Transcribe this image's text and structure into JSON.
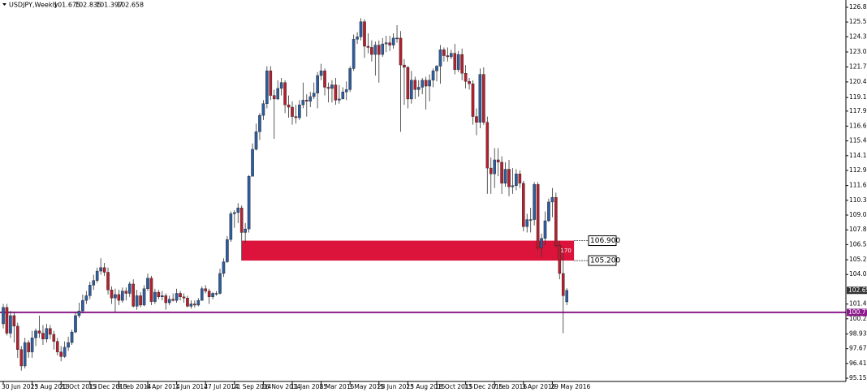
{
  "chart_data": {
    "type": "candlestick",
    "title": "USDJPY,Weekly",
    "ylim": [
      94.88,
      127.45
    ],
    "yticks": [
      {
        "value": 126.83,
        "label": "126.830"
      },
      {
        "value": 125.57,
        "label": "125.570"
      },
      {
        "value": 124.31,
        "label": "124.310"
      },
      123.015,
      121.735,
      120.455,
      119.125,
      117.965,
      {
        "value": 116.68,
        "label": "116.680"
      },
      {
        "value": 115.42,
        "label": "115.420"
      },
      {
        "value": 114.16,
        "label": "114.160"
      },
      {
        "value": 112.9,
        "label": "112.900"
      },
      111.605,
      110.345,
      109.085,
      107.825,
      106.565,
      {
        "value": 105.27,
        "label": "105.270"
      },
      {
        "value": 104.01,
        "label": "104.010"
      },
      {
        "value": 101.49,
        "label": "101.490"
      },
      {
        "value": 100.23,
        "label": "100.230"
      },
      98.935,
      97.675,
      96.415,
      95.155
    ],
    "categories": [
      "30 Jun 2013",
      null,
      null,
      null,
      null,
      null,
      null,
      null,
      "25 Aug 2013",
      null,
      null,
      null,
      null,
      null,
      null,
      null,
      "20 Oct 2013",
      null,
      null,
      null,
      null,
      null,
      null,
      null,
      "15 Dec 2013",
      null,
      null,
      null,
      null,
      null,
      null,
      null,
      "9 Feb 2014",
      null,
      null,
      null,
      null,
      null,
      null,
      null,
      "6 Apr 2014",
      null,
      null,
      null,
      null,
      null,
      null,
      null,
      "1 Jun 2014",
      null,
      null,
      null,
      null,
      null,
      null,
      null,
      "27 Jul 2014",
      null,
      null,
      null,
      null,
      null,
      null,
      null,
      "21 Sep 2014",
      null,
      null,
      null,
      null,
      null,
      null,
      null,
      "16 Nov 2014",
      null,
      null,
      null,
      null,
      null,
      null,
      null,
      "11 Jan 2015",
      null,
      null,
      null,
      null,
      null,
      null,
      null,
      "8 Mar 2015",
      null,
      null,
      null,
      null,
      null,
      null,
      null,
      "3 May 2015",
      null,
      null,
      null,
      null,
      null,
      null,
      null,
      "28 Jun 2015",
      null,
      null,
      null,
      null,
      null,
      null,
      null,
      "23 Aug 2015",
      null,
      null,
      null,
      null,
      null,
      null,
      null,
      "18 Oct 2015",
      null,
      null,
      null,
      null,
      null,
      null,
      null,
      "13 Dec 2015",
      null,
      null,
      null,
      null,
      null,
      null,
      null,
      "7 Feb 2016",
      null,
      null,
      null,
      null,
      null,
      null,
      null,
      "3 Apr 2016",
      null,
      null,
      null,
      null,
      null,
      null,
      null,
      "29 May 2016",
      null,
      null,
      null,
      null
    ],
    "open": [
      99.8,
      101.2,
      99.0,
      100.5,
      99.6,
      97.6,
      96.2,
      98.2,
      97.4,
      98.6,
      99.2,
      99.0,
      98.5,
      99.4,
      98.9,
      98.3,
      97.4,
      97.0,
      97.8,
      98.2,
      99.1,
      100.5,
      100.9,
      101.8,
      102.2,
      103.1,
      103.5,
      104.3,
      104.6,
      104.2,
      102.7,
      102.0,
      102.3,
      101.8,
      102.6,
      102.4,
      103.2,
      101.3,
      102.2,
      101.4,
      102.8,
      103.7,
      101.7,
      102.5,
      102.1,
      102.2,
      101.6,
      101.9,
      101.8,
      102.4,
      102.1,
      102.0,
      101.3,
      101.5,
      101.4,
      101.8,
      102.8,
      102.6,
      102.1,
      102.4,
      102.4,
      104.1,
      105.1,
      107.0,
      109.2,
      109.3,
      109.7,
      107.6,
      107.9,
      112.4,
      114.7,
      116.2,
      117.6,
      118.6,
      121.4,
      119.3,
      119.0,
      119.9,
      120.4,
      118.5,
      118.3,
      117.5,
      117.4,
      118.5,
      118.9,
      118.8,
      119.2,
      119.5,
      121.0,
      121.4,
      120.0,
      119.9,
      120.2,
      118.9,
      119.0,
      119.6,
      119.8,
      121.6,
      124.1,
      124.3,
      125.6,
      123.5,
      123.4,
      122.8,
      123.6,
      122.8,
      123.7,
      123.8,
      123.6,
      124.2,
      124.2,
      121.9,
      121.7,
      119.0,
      120.6,
      119.8,
      120.0,
      120.6,
      120.1,
      120.6,
      121.4,
      121.8,
      123.2,
      122.7,
      122.6,
      122.9,
      121.5,
      122.8,
      121.2,
      120.5,
      120.3,
      117.5,
      117.0,
      121.1,
      117.0,
      113.1,
      112.6,
      113.8,
      113.6,
      111.8,
      113.0,
      111.5,
      111.6,
      112.6,
      111.8,
      108.1,
      108.7,
      108.7,
      111.7,
      106.3,
      107.1,
      108.6,
      110.2,
      110.6,
      106.5,
      104.1,
      101.675
    ],
    "high": [
      101.5,
      101.5,
      100.9,
      100.8,
      99.9,
      97.9,
      98.6,
      98.4,
      99.2,
      99.4,
      100.5,
      99.7,
      99.8,
      99.7,
      99.2,
      98.6,
      97.9,
      98.3,
      98.7,
      99.3,
      100.8,
      101.6,
      102.3,
      102.6,
      103.4,
      104.0,
      104.6,
      105.4,
      105.0,
      104.6,
      103.0,
      102.8,
      102.7,
      102.9,
      102.9,
      103.4,
      103.6,
      102.7,
      102.5,
      103.1,
      104.1,
      103.9,
      102.8,
      102.7,
      102.6,
      102.4,
      102.2,
      102.4,
      102.8,
      102.6,
      102.4,
      102.2,
      101.8,
      101.8,
      102.0,
      103.0,
      103.1,
      102.8,
      102.5,
      102.6,
      104.5,
      105.4,
      107.3,
      109.4,
      109.5,
      110.1,
      109.9,
      108.4,
      112.5,
      115.2,
      116.9,
      117.8,
      118.9,
      121.8,
      121.8,
      119.8,
      120.6,
      120.8,
      120.6,
      119.3,
      118.8,
      118.5,
      118.9,
      120.4,
      119.4,
      119.6,
      120.4,
      121.3,
      122.0,
      121.6,
      120.4,
      120.6,
      120.8,
      120.2,
      120.0,
      120.5,
      121.8,
      124.5,
      124.7,
      125.9,
      125.8,
      124.6,
      124.0,
      123.9,
      124.0,
      124.2,
      124.4,
      124.4,
      124.6,
      125.3,
      124.8,
      122.4,
      121.8,
      121.4,
      120.9,
      120.6,
      120.8,
      120.9,
      121.1,
      121.6,
      121.9,
      123.6,
      123.4,
      123.4,
      123.2,
      123.7,
      123.1,
      123.3,
      121.9,
      120.8,
      120.6,
      118.2,
      121.6,
      121.7,
      117.5,
      114.0,
      114.8,
      114.8,
      114.1,
      113.6,
      113.8,
      113.1,
      113.0,
      112.9,
      112.0,
      109.2,
      109.7,
      111.9,
      111.9,
      107.5,
      109.4,
      110.5,
      111.4,
      111.0,
      106.9,
      106.3,
      102.835
    ],
    "low": [
      99.4,
      98.8,
      98.6,
      98.2,
      96.9,
      95.8,
      96.0,
      96.9,
      96.9,
      97.9,
      98.6,
      98.0,
      98.2,
      98.5,
      97.6,
      97.1,
      96.6,
      96.9,
      97.5,
      98.0,
      99.0,
      100.3,
      100.7,
      101.5,
      101.9,
      102.7,
      103.3,
      104.0,
      103.9,
      102.3,
      101.5,
      100.8,
      101.4,
      101.6,
      101.8,
      102.1,
      101.2,
      101.0,
      101.2,
      101.3,
      102.6,
      101.4,
      101.5,
      101.9,
      101.8,
      101.0,
      101.4,
      101.7,
      101.6,
      101.8,
      101.6,
      101.2,
      101.1,
      101.2,
      101.3,
      101.8,
      102.4,
      101.5,
      101.9,
      102.2,
      102.3,
      103.8,
      105.0,
      106.8,
      108.0,
      108.4,
      105.2,
      106.7,
      107.6,
      112.6,
      114.6,
      115.5,
      117.2,
      118.2,
      118.9,
      115.6,
      118.9,
      119.3,
      117.8,
      117.4,
      116.8,
      116.9,
      117.2,
      118.2,
      117.5,
      118.3,
      119.0,
      118.2,
      120.6,
      119.3,
      118.7,
      118.7,
      118.5,
      118.6,
      119.0,
      118.9,
      119.6,
      121.4,
      123.7,
      124.0,
      122.5,
      122.9,
      122.2,
      121.0,
      120.4,
      122.6,
      123.0,
      123.1,
      123.3,
      123.8,
      116.2,
      118.5,
      118.2,
      118.6,
      119.0,
      119.2,
      119.4,
      118.1,
      118.8,
      120.0,
      120.5,
      120.3,
      122.2,
      122.2,
      122.4,
      121.1,
      121.3,
      120.6,
      119.9,
      119.8,
      116.8,
      115.9,
      116.5,
      116.8,
      110.9,
      110.9,
      111.4,
      112.4,
      110.9,
      111.5,
      110.7,
      110.9,
      111.2,
      111.4,
      107.7,
      107.6,
      107.6,
      108.2,
      106.1,
      105.5,
      106.5,
      108.5,
      108.9,
      106.3,
      103.6,
      99.0,
      101.397
    ],
    "close": [
      101.2,
      99.0,
      100.5,
      99.6,
      97.6,
      96.2,
      98.2,
      97.4,
      98.6,
      99.2,
      99.0,
      98.5,
      99.4,
      98.9,
      98.3,
      97.4,
      97.0,
      97.8,
      98.2,
      99.1,
      100.5,
      100.9,
      101.8,
      102.2,
      103.1,
      103.5,
      104.3,
      104.6,
      104.2,
      102.7,
      102.0,
      102.3,
      101.8,
      102.6,
      102.4,
      103.2,
      101.3,
      102.2,
      101.4,
      102.8,
      103.7,
      101.7,
      102.5,
      102.1,
      102.2,
      101.6,
      101.9,
      101.8,
      102.4,
      102.1,
      102.0,
      101.3,
      101.5,
      101.4,
      101.8,
      102.8,
      102.6,
      102.1,
      102.4,
      102.4,
      104.1,
      105.1,
      107.0,
      109.2,
      109.3,
      109.7,
      107.6,
      107.9,
      112.4,
      114.7,
      116.2,
      117.6,
      118.6,
      121.4,
      119.3,
      119.0,
      119.9,
      120.4,
      118.5,
      118.3,
      117.5,
      117.4,
      118.5,
      118.9,
      118.8,
      119.2,
      119.5,
      121.0,
      121.4,
      120.0,
      119.9,
      120.2,
      118.9,
      119.0,
      119.6,
      119.8,
      121.6,
      124.1,
      124.3,
      125.6,
      123.5,
      123.4,
      122.8,
      123.6,
      122.8,
      123.7,
      123.8,
      123.6,
      124.2,
      124.2,
      121.9,
      121.7,
      119.0,
      120.6,
      119.8,
      120.0,
      120.6,
      120.1,
      120.6,
      121.4,
      121.8,
      123.2,
      122.7,
      122.6,
      122.9,
      121.5,
      122.8,
      121.2,
      120.5,
      120.3,
      117.5,
      117.0,
      121.1,
      117.0,
      113.1,
      112.6,
      113.8,
      113.6,
      111.8,
      113.0,
      111.5,
      111.6,
      112.6,
      111.8,
      108.1,
      108.7,
      108.7,
      111.7,
      106.3,
      107.1,
      108.6,
      110.2,
      110.6,
      106.5,
      104.1,
      102.2,
      102.658
    ],
    "up_color": "#2e5c9e",
    "down_color": "#b3202e",
    "hline": {
      "value": 100.776,
      "color": "#8b1a8b"
    },
    "zone": {
      "high": {
        "value": 106.9,
        "label": "106.900"
      },
      "low": {
        "value": 105.2,
        "label": "105.200"
      },
      "text": "170",
      "color": "#dc143c",
      "x_range": [
        66,
        158
      ]
    }
  }
}
